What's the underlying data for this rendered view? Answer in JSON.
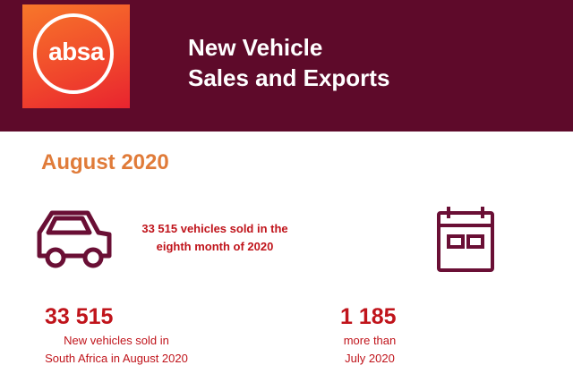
{
  "header": {
    "logo": "absa",
    "title": [
      "New Vehicle",
      "Sales and Exports"
    ]
  },
  "date": "August 2020",
  "summary": [
    "33 515 vehicles sold in the",
    "eighth month of 2020"
  ],
  "stats": [
    {
      "value": "33 515",
      "label": [
        "New vehicles sold in",
        "South Africa in August 2020"
      ]
    },
    {
      "value": "1 185",
      "label": [
        "more than",
        "July 2020"
      ]
    }
  ]
}
